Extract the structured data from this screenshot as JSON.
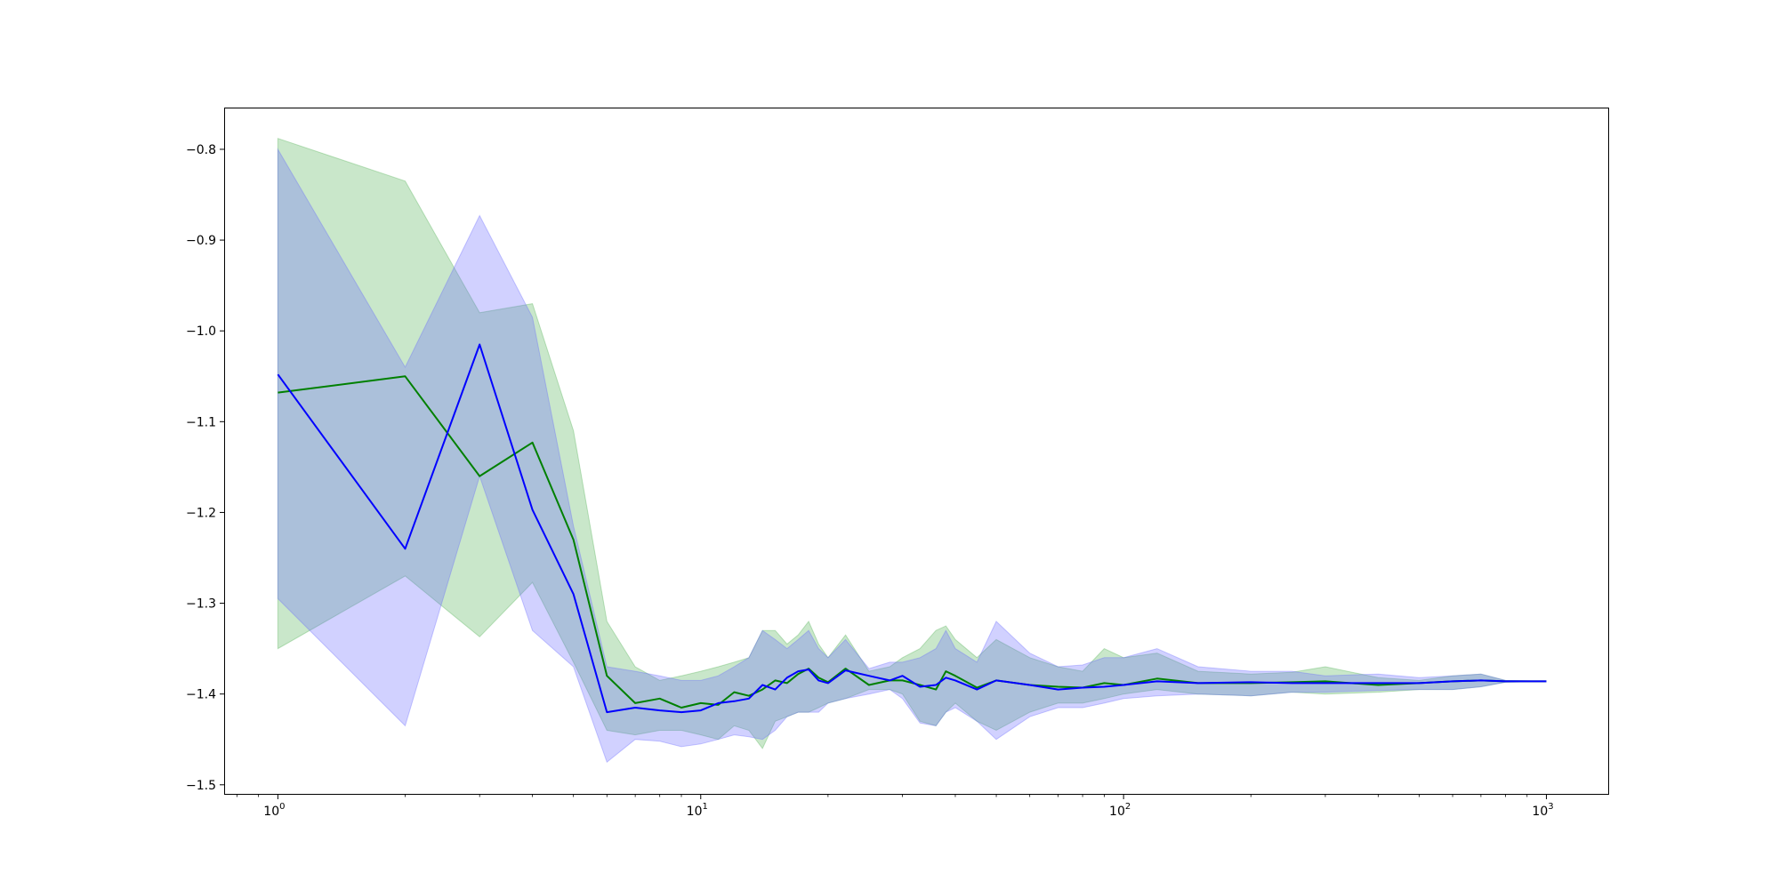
{
  "chart_data": {
    "type": "line",
    "title": "",
    "xlabel": "",
    "ylabel": "",
    "xscale": "log",
    "xlim": [
      0.75,
      1400
    ],
    "ylim": [
      -1.51,
      -0.755
    ],
    "grid": false,
    "legend": "none",
    "x_ticks": [
      {
        "value": 1,
        "base": "10",
        "exp": "0"
      },
      {
        "value": 10,
        "base": "10",
        "exp": "1"
      },
      {
        "value": 100,
        "base": "10",
        "exp": "2"
      },
      {
        "value": 1000,
        "base": "10",
        "exp": "3"
      }
    ],
    "y_ticks": [
      {
        "value": -0.8,
        "label": "−0.8"
      },
      {
        "value": -0.9,
        "label": "−0.9"
      },
      {
        "value": -1.0,
        "label": "−1.0"
      },
      {
        "value": -1.1,
        "label": "−1.1"
      },
      {
        "value": -1.2,
        "label": "−1.2"
      },
      {
        "value": -1.3,
        "label": "−1.3"
      },
      {
        "value": -1.4,
        "label": "−1.4"
      },
      {
        "value": -1.5,
        "label": "−1.5"
      }
    ],
    "series": [
      {
        "color": "#008000",
        "band_color": "#4caf50",
        "x": [
          1,
          2,
          3,
          4,
          5,
          6,
          7,
          8,
          9,
          10,
          11,
          12,
          13,
          14,
          15,
          16,
          17,
          18,
          19,
          20,
          22,
          25,
          28,
          30,
          33,
          36,
          38,
          40,
          45,
          50,
          60,
          70,
          80,
          90,
          100,
          120,
          150,
          200,
          250,
          300,
          400,
          500,
          600,
          700,
          800,
          1000
        ],
        "y": [
          -1.068,
          -1.05,
          -1.16,
          -1.123,
          -1.23,
          -1.38,
          -1.41,
          -1.405,
          -1.415,
          -1.41,
          -1.412,
          -1.398,
          -1.402,
          -1.395,
          -1.385,
          -1.388,
          -1.378,
          -1.372,
          -1.382,
          -1.387,
          -1.372,
          -1.39,
          -1.385,
          -1.385,
          -1.39,
          -1.395,
          -1.375,
          -1.38,
          -1.393,
          -1.385,
          -1.39,
          -1.392,
          -1.393,
          -1.388,
          -1.39,
          -1.383,
          -1.388,
          -1.388,
          -1.387,
          -1.386,
          -1.39,
          -1.388,
          -1.386,
          -1.385,
          -1.386,
          -1.386
        ],
        "lower": [
          -1.35,
          -1.27,
          -1.337,
          -1.277,
          -1.365,
          -1.44,
          -1.445,
          -1.44,
          -1.44,
          -1.445,
          -1.45,
          -1.435,
          -1.44,
          -1.46,
          -1.43,
          -1.425,
          -1.42,
          -1.42,
          -1.415,
          -1.41,
          -1.405,
          -1.395,
          -1.395,
          -1.4,
          -1.43,
          -1.435,
          -1.42,
          -1.41,
          -1.43,
          -1.44,
          -1.42,
          -1.41,
          -1.41,
          -1.405,
          -1.4,
          -1.395,
          -1.4,
          -1.402,
          -1.398,
          -1.4,
          -1.398,
          -1.395,
          -1.395,
          -1.392,
          -1.387,
          -1.386
        ],
        "upper": [
          -0.788,
          -0.835,
          -0.98,
          -0.97,
          -1.11,
          -1.32,
          -1.37,
          -1.385,
          -1.38,
          -1.375,
          -1.37,
          -1.365,
          -1.36,
          -1.33,
          -1.33,
          -1.345,
          -1.335,
          -1.32,
          -1.345,
          -1.36,
          -1.335,
          -1.375,
          -1.37,
          -1.36,
          -1.35,
          -1.33,
          -1.325,
          -1.34,
          -1.36,
          -1.34,
          -1.36,
          -1.37,
          -1.375,
          -1.35,
          -1.36,
          -1.355,
          -1.375,
          -1.378,
          -1.376,
          -1.37,
          -1.382,
          -1.385,
          -1.38,
          -1.378,
          -1.385,
          -1.386
        ]
      },
      {
        "color": "#0000ff",
        "band_color": "#6666ff",
        "x": [
          1,
          2,
          3,
          4,
          5,
          6,
          7,
          8,
          9,
          10,
          11,
          12,
          13,
          14,
          15,
          16,
          17,
          18,
          19,
          20,
          22,
          25,
          28,
          30,
          33,
          36,
          38,
          40,
          45,
          50,
          60,
          70,
          80,
          90,
          100,
          120,
          150,
          200,
          250,
          300,
          400,
          500,
          600,
          700,
          800,
          1000
        ],
        "y": [
          -1.048,
          -1.24,
          -1.015,
          -1.197,
          -1.29,
          -1.42,
          -1.415,
          -1.418,
          -1.42,
          -1.418,
          -1.41,
          -1.408,
          -1.405,
          -1.39,
          -1.395,
          -1.382,
          -1.375,
          -1.373,
          -1.385,
          -1.388,
          -1.374,
          -1.38,
          -1.385,
          -1.38,
          -1.392,
          -1.39,
          -1.382,
          -1.385,
          -1.395,
          -1.385,
          -1.39,
          -1.395,
          -1.393,
          -1.392,
          -1.39,
          -1.386,
          -1.388,
          -1.387,
          -1.388,
          -1.388,
          -1.388,
          -1.388,
          -1.386,
          -1.385,
          -1.386,
          -1.386
        ],
        "lower": [
          -1.295,
          -1.435,
          -1.16,
          -1.33,
          -1.37,
          -1.475,
          -1.45,
          -1.452,
          -1.458,
          -1.455,
          -1.45,
          -1.445,
          -1.447,
          -1.45,
          -1.44,
          -1.425,
          -1.42,
          -1.42,
          -1.42,
          -1.41,
          -1.405,
          -1.4,
          -1.395,
          -1.405,
          -1.432,
          -1.435,
          -1.42,
          -1.415,
          -1.43,
          -1.45,
          -1.425,
          -1.415,
          -1.415,
          -1.41,
          -1.405,
          -1.402,
          -1.4,
          -1.402,
          -1.398,
          -1.398,
          -1.396,
          -1.395,
          -1.395,
          -1.392,
          -1.387,
          -1.386
        ],
        "upper": [
          -0.8,
          -1.04,
          -0.873,
          -0.985,
          -1.215,
          -1.37,
          -1.375,
          -1.38,
          -1.385,
          -1.385,
          -1.38,
          -1.37,
          -1.36,
          -1.33,
          -1.34,
          -1.35,
          -1.34,
          -1.33,
          -1.35,
          -1.36,
          -1.34,
          -1.372,
          -1.365,
          -1.365,
          -1.36,
          -1.35,
          -1.33,
          -1.35,
          -1.365,
          -1.32,
          -1.355,
          -1.37,
          -1.368,
          -1.36,
          -1.36,
          -1.35,
          -1.37,
          -1.375,
          -1.375,
          -1.38,
          -1.378,
          -1.382,
          -1.38,
          -1.378,
          -1.385,
          -1.386
        ]
      }
    ]
  }
}
